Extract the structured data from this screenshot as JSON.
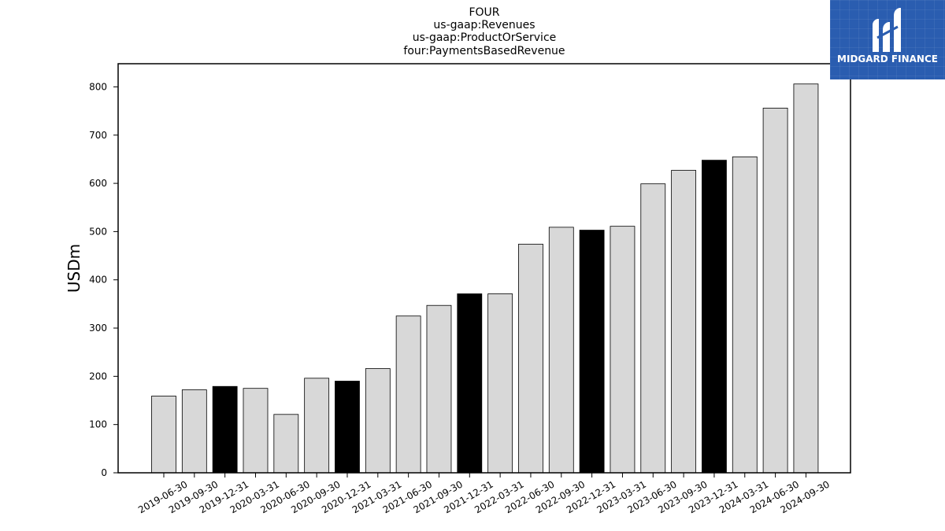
{
  "chart_data": {
    "type": "bar",
    "title_lines": [
      "FOUR",
      "us-gaap:Revenues",
      "us-gaap:ProductOrService",
      "four:PaymentsBasedRevenue"
    ],
    "ylabel": "USDm",
    "xlabel": "",
    "ylim": [
      0,
      848
    ],
    "yticks": [
      0,
      100,
      200,
      300,
      400,
      500,
      600,
      700,
      800
    ],
    "categories": [
      "2019-06-30",
      "2019-09-30",
      "2019-12-31",
      "2020-03-31",
      "2020-06-30",
      "2020-09-30",
      "2020-12-31",
      "2021-03-31",
      "2021-06-30",
      "2021-09-30",
      "2021-12-31",
      "2022-03-31",
      "2022-06-30",
      "2022-09-30",
      "2022-12-31",
      "2023-03-31",
      "2023-06-30",
      "2023-09-30",
      "2023-12-31",
      "2024-03-31",
      "2024-06-30",
      "2024-09-30"
    ],
    "values": [
      159,
      172,
      179,
      175,
      121,
      196,
      190,
      216,
      325,
      347,
      371,
      371,
      474,
      509,
      503,
      511,
      599,
      627,
      648,
      655,
      756,
      806
    ],
    "highlight_categories": [
      "2019-12-31",
      "2020-12-31",
      "2021-12-31",
      "2022-12-31",
      "2023-12-31"
    ],
    "colors": {
      "bar": "#d8d8d8",
      "highlight_bar": "#000000",
      "bar_edge": "#000000"
    },
    "grid": false,
    "legend": "none"
  },
  "logo": {
    "text": "MIDGARD FINANCE",
    "background": "#2a5db0"
  }
}
